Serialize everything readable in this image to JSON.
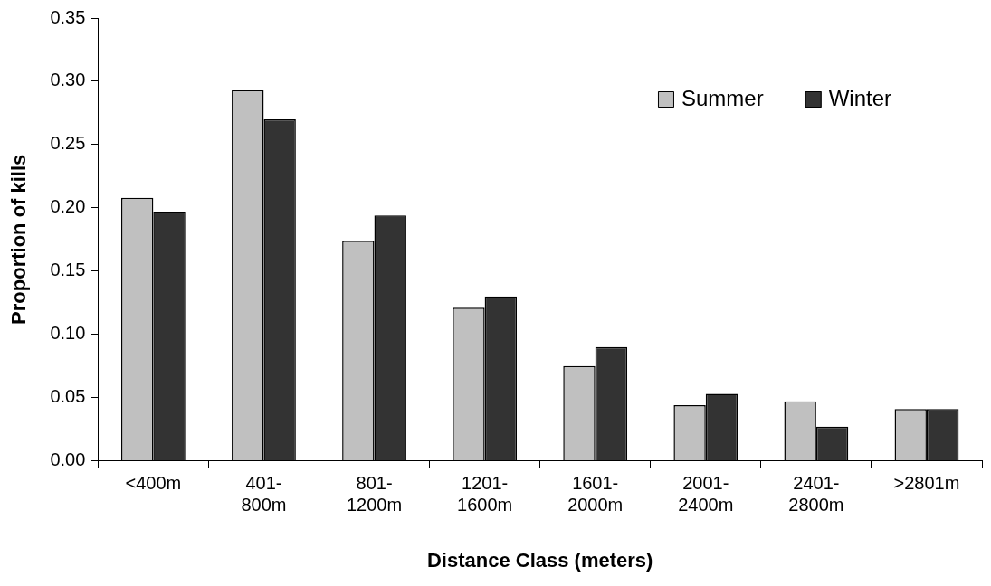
{
  "chart_data": {
    "type": "bar",
    "xlabel": "Distance Class (meters)",
    "ylabel": "Proportion of kills",
    "categories": [
      "<400m",
      "401-\n800m",
      "801-\n1200m",
      "1201-\n1600m",
      "1601-\n2000m",
      "2001-\n2400m",
      "2401-\n2800m",
      ">2801m"
    ],
    "series": [
      {
        "name": "Summer",
        "color": "#c0c0c0",
        "values": [
          0.208,
          0.293,
          0.174,
          0.121,
          0.075,
          0.044,
          0.047,
          0.041
        ]
      },
      {
        "name": "Winter",
        "color": "#333333",
        "values": [
          0.197,
          0.27,
          0.194,
          0.13,
          0.09,
          0.053,
          0.027,
          0.041
        ]
      }
    ],
    "ylim": [
      0,
      0.35
    ],
    "yticks": [
      {
        "value": 0,
        "label": "0.00"
      },
      {
        "value": 0.05,
        "label": "0.05"
      },
      {
        "value": 0.1,
        "label": "0.10"
      },
      {
        "value": 0.15,
        "label": "0.15"
      },
      {
        "value": 0.2,
        "label": "0.20"
      },
      {
        "value": 0.25,
        "label": "0.25"
      },
      {
        "value": 0.3,
        "label": "0.30"
      },
      {
        "value": 0.35,
        "label": "0.35"
      }
    ],
    "grid": false,
    "legend": "top right"
  }
}
